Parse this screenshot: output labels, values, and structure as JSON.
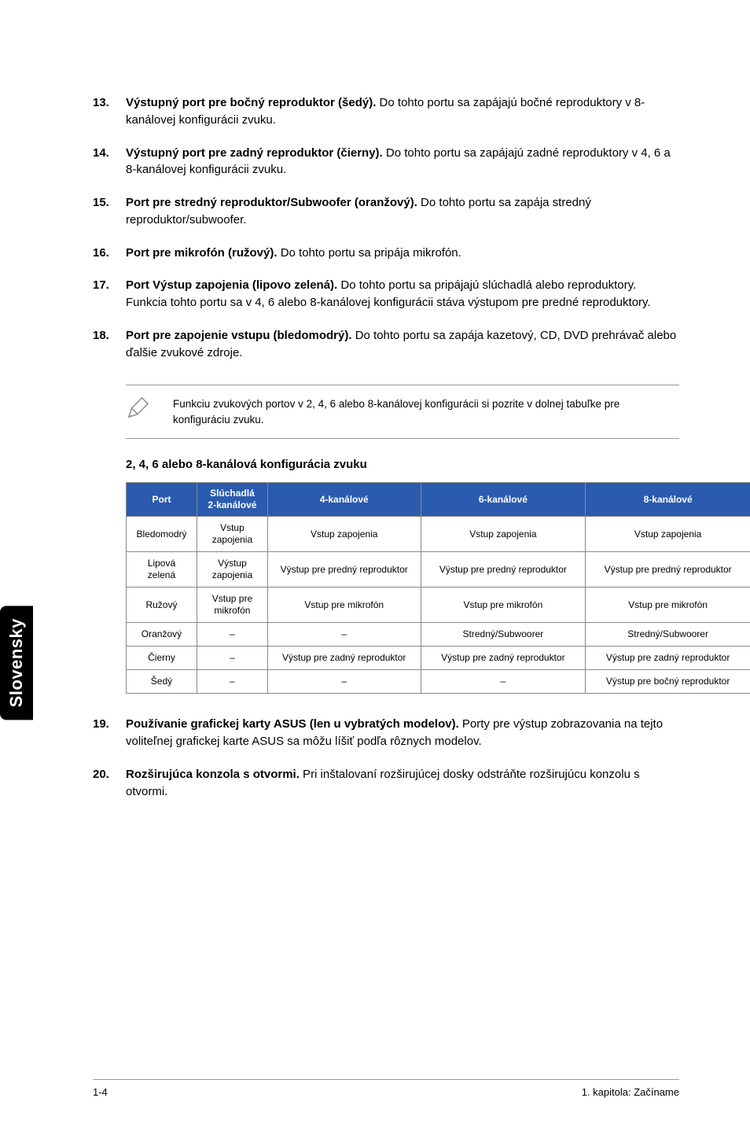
{
  "items": [
    {
      "num": "13.",
      "title": "Výstupný port pre bočný reproduktor (šedý).",
      "desc": " Do tohto portu sa zapájajú bočné reproduktory v 8-kanálovej konfigurácii zvuku."
    },
    {
      "num": "14.",
      "title": "Výstupný port pre zadný reproduktor (čierny).",
      "desc": " Do tohto portu sa zapájajú zadné reproduktory v 4, 6 a 8-kanálovej konfigurácii zvuku."
    },
    {
      "num": "15.",
      "title": "Port pre stredný reproduktor/Subwoofer (oranžový).",
      "desc": " Do tohto portu sa zapája stredný reproduktor/subwoofer."
    },
    {
      "num": "16.",
      "title": "Port pre mikrofón (ružový).",
      "desc": " Do tohto portu sa pripája mikrofón."
    },
    {
      "num": "17.",
      "title": "Port Výstup zapojenia (lipovo zelená).",
      "desc": " Do tohto portu sa pripájajú slúchadlá alebo reproduktory. Funkcia tohto portu sa v 4, 6 alebo\n8-kanálovej konfigurácii stáva výstupom pre predné reproduktory."
    },
    {
      "num": "18.",
      "title": "Port pre zapojenie vstupu (bledomodrý).",
      "desc": " Do tohto portu sa zapája kazetový, CD, DVD prehrávač alebo ďalšie zvukové zdroje."
    }
  ],
  "note": "Funkciu zvukových portov v 2, 4, 6 alebo 8-kanálovej konfigurácii si pozrite v dolnej tabuľke pre konfiguráciu zvuku.",
  "table_heading": "2, 4, 6 alebo 8-kanálová konfigurácia zvuku",
  "table": {
    "headers": [
      "Port",
      "Slúchadlá\n2-kanálové",
      "4-kanálové",
      "6-kanálové",
      "8-kanálové"
    ],
    "col_widths": [
      "90px",
      "90px",
      "195px",
      "210px",
      "210px"
    ],
    "rows": [
      [
        "Bledomodrý",
        "Vstup zapojenia",
        "Vstup zapojenia",
        "Vstup zapojenia",
        "Vstup zapojenia"
      ],
      [
        "Lipová zelená",
        "Výstup zapojenia",
        "Výstup pre predný reproduktor",
        "Výstup pre predný reproduktor",
        "Výstup pre predný reproduktor"
      ],
      [
        "Ružový",
        "Vstup pre mikrofón",
        "Vstup pre mikrofón",
        "Vstup pre mikrofón",
        "Vstup pre mikrofón"
      ],
      [
        "Oranžový",
        "–",
        "–",
        "Stredný/Subwoorer",
        "Stredný/Subwoorer"
      ],
      [
        "Čierny",
        "–",
        "Výstup pre zadný reproduktor",
        "Výstup pre zadný reproduktor",
        "Výstup pre zadný reproduktor"
      ],
      [
        "Šedý",
        "–",
        "–",
        "–",
        "Výstup pre bočný reproduktor"
      ]
    ]
  },
  "items2": [
    {
      "num": "19.",
      "title": "Používanie grafickej karty ASUS (len u vybratých modelov).",
      "desc": " Porty pre výstup zobrazovania na tejto voliteľnej grafickej karte ASUS sa môžu líšiť podľa rôznych modelov."
    },
    {
      "num": "20.",
      "title": "Rozširujúca konzola s otvormi.",
      "desc": " Pri inštalovaní rozširujúcej dosky odstráňte rozširujúcu konzolu s otvormi."
    }
  ],
  "sidetab": "Slovensky",
  "footer_left": "1-4",
  "footer_right": "1. kapitola: Začíname"
}
